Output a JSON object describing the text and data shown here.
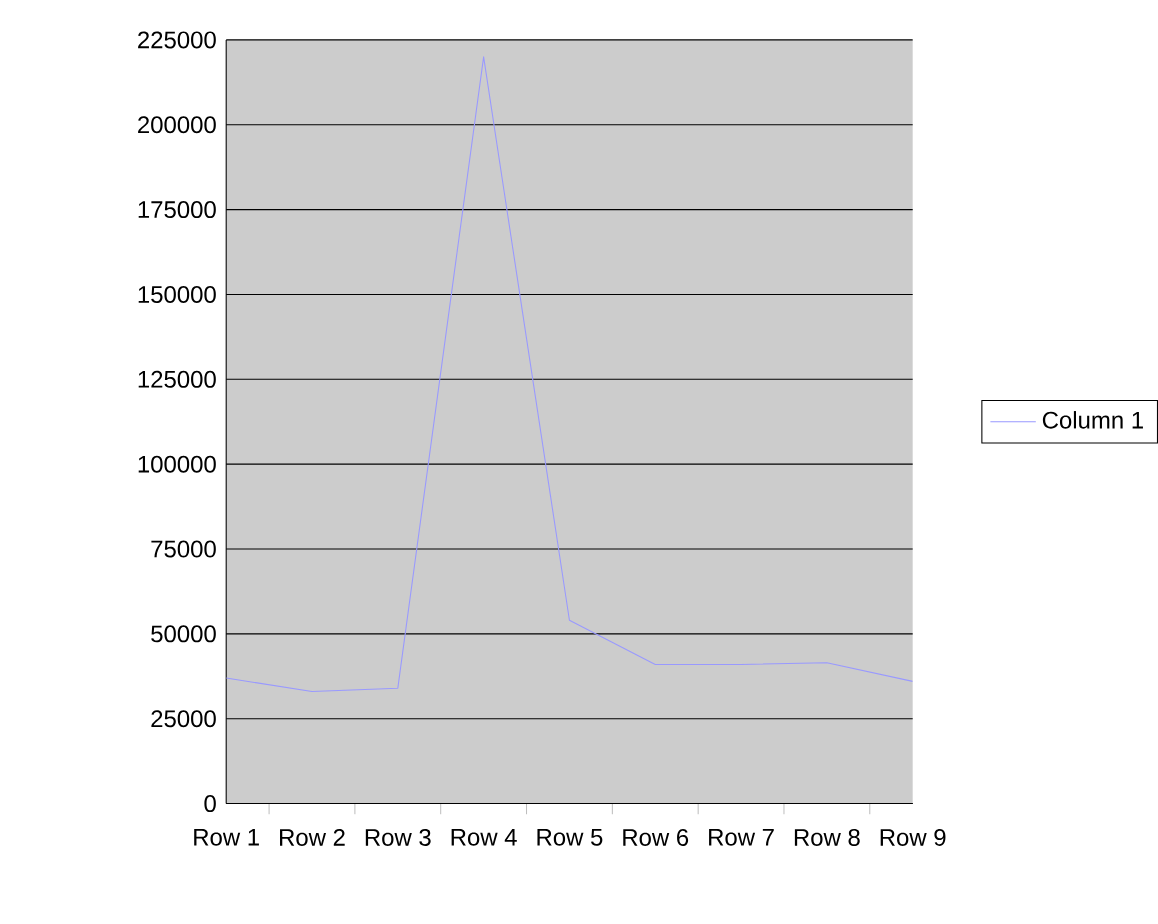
{
  "chart_data": {
    "type": "line",
    "categories": [
      "Row 1",
      "Row 2",
      "Row 3",
      "Row 4",
      "Row 5",
      "Row 6",
      "Row 7",
      "Row 8",
      "Row 9"
    ],
    "series": [
      {
        "name": "Column 1",
        "color": "#9999ff",
        "values": [
          37000,
          33000,
          34000,
          220000,
          54000,
          41000,
          41000,
          41500,
          36000
        ]
      }
    ],
    "ylim": [
      0,
      225000
    ],
    "yticks": [
      0,
      25000,
      50000,
      75000,
      100000,
      125000,
      150000,
      175000,
      200000,
      225000
    ],
    "grid": "y",
    "legend": "right"
  }
}
